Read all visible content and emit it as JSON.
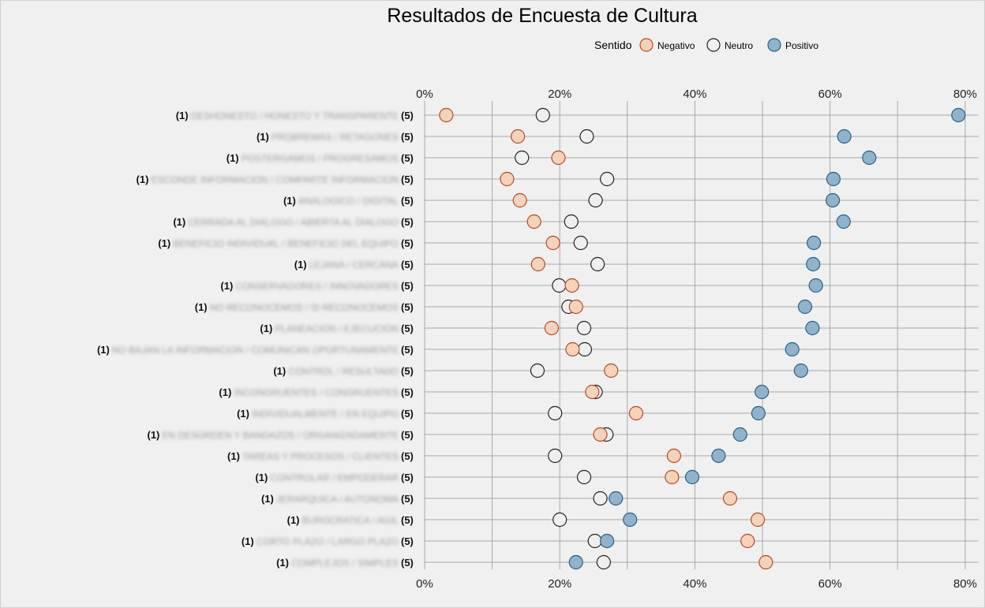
{
  "chart_data": {
    "type": "scatter",
    "title": "Resultados de Encuesta de Cultura",
    "legend": {
      "title": "Sentido",
      "position": "top-right",
      "entries": [
        {
          "name": "Negativo",
          "color": "#f5d3b8",
          "stroke": "#b7472a"
        },
        {
          "name": "Neutro",
          "color": "#efefef",
          "stroke": "#222222"
        },
        {
          "name": "Positivo",
          "color": "#8fb3cc",
          "stroke": "#2c5f82"
        }
      ]
    },
    "x_axis": {
      "ticks": [
        "0%",
        "20%",
        "40%",
        "60%",
        "80%"
      ],
      "range": [
        0,
        82
      ],
      "position": "top and bottom",
      "grid": true
    },
    "row_anchor_left": "(1)",
    "row_anchor_right": "(5)",
    "row_labels": [
      "DESHONESTO / HONESTO Y TRANSPARENTE",
      "PROBREMAS / RETAGONES",
      "POSTERGAMOS / PROGRESAMOS",
      "ESCONDE INFORMACION / COMPARTE INFORMACION",
      "ANALOGICO / DIGITAL",
      "CERRADA AL DIALOGO / ABIERTA AL DIALOGO",
      "BENEFICIO INDIVIDUAL / BENEFICIO DEL EQUIPO",
      "LEJANA / CERCANA",
      "CONSERVADORES / INNOVADORES",
      "NO RECONOCEMOS / SI RECONOCEMOS",
      "PLANEACION / EJECUCION",
      "NO BAJAN LA INFORMACION / COMUNICAN OPORTUNAMENTE",
      "CONTROL / RESULTADO",
      "INCONGRUENTES / CONGRUENTES",
      "INDIVIDUALMENTE / EN EQUIPO",
      "EN DESORDEN Y BANDAZOS / ORGANIZADAMENTE",
      "TAREAS Y PROCESOS / CLIENTES",
      "CONTROLAR / EMPODERAR",
      "JERARQUICA / AUTONOMA",
      "BUROCRATICA / AGIL",
      "CORTO PLAZO / LARGO PLAZO",
      "COMPLEJOS / SIMPLES"
    ],
    "series": [
      {
        "name": "Negativo",
        "values": [
          3.2,
          13.8,
          19.8,
          12.2,
          14.1,
          16.2,
          19.0,
          16.8,
          21.8,
          22.4,
          18.8,
          21.9,
          27.6,
          24.8,
          31.3,
          26.0,
          36.9,
          36.6,
          45.2,
          49.3,
          47.8,
          50.5
        ]
      },
      {
        "name": "Neutro",
        "values": [
          17.5,
          24.0,
          14.4,
          27.0,
          25.3,
          21.7,
          23.1,
          25.6,
          19.9,
          21.3,
          23.6,
          23.7,
          16.7,
          25.3,
          19.3,
          26.9,
          19.3,
          23.6,
          26.0,
          20.0,
          25.2,
          26.5
        ]
      },
      {
        "name": "Positivo",
        "values": [
          79.0,
          62.1,
          65.8,
          60.5,
          60.4,
          62.0,
          57.6,
          57.5,
          57.9,
          56.3,
          57.4,
          54.4,
          55.7,
          49.9,
          49.4,
          46.7,
          43.5,
          39.6,
          28.3,
          30.4,
          27.0,
          22.4
        ]
      }
    ]
  }
}
